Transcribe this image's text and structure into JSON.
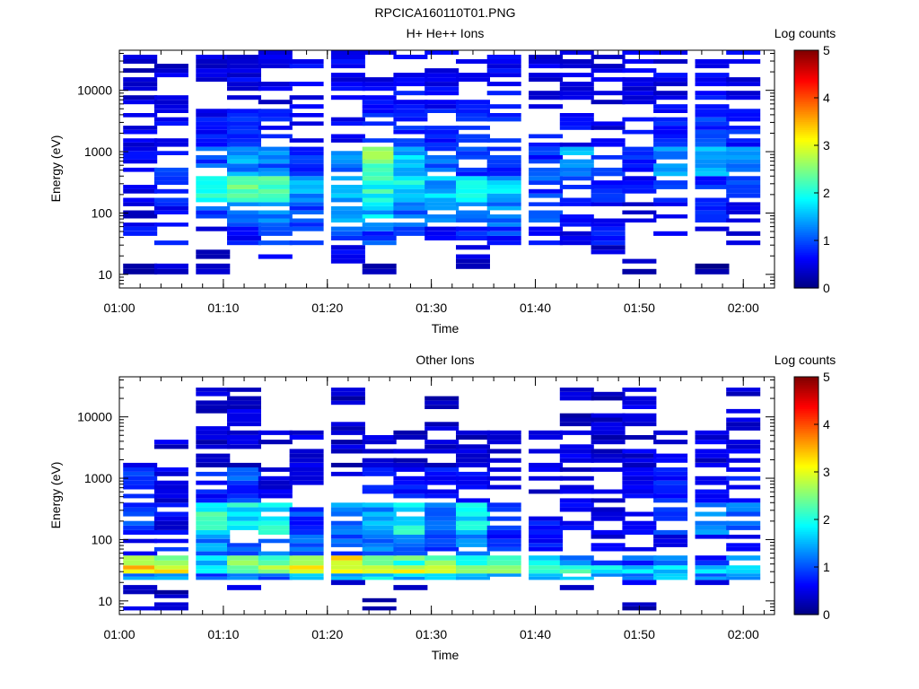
{
  "figure_title": "RPCICA160110T01.PNG",
  "colors": {
    "axis": "#000000",
    "background": "#ffffff"
  },
  "colorbar": {
    "label": "Log counts",
    "ticks": [
      "0",
      "1",
      "2",
      "3",
      "4",
      "5"
    ],
    "range": [
      0,
      5
    ],
    "colormap": "jet"
  },
  "chart_data": [
    {
      "type": "heatmap",
      "title": "H+ He++ Ions",
      "xlabel": "Time",
      "ylabel": "Energy (eV)",
      "y_scale": "log",
      "ylim": [
        6,
        45000
      ],
      "xlim": [
        "01:00",
        "02:03"
      ],
      "x_ticks": [
        "01:00",
        "01:10",
        "01:20",
        "01:30",
        "01:40",
        "01:50",
        "02:00"
      ],
      "y_ticks": [
        "10",
        "100",
        "1000",
        "10000"
      ],
      "time_bins": [
        "01:02",
        "01:05",
        "01:09",
        "01:12",
        "01:15",
        "01:18",
        "01:22",
        "01:25",
        "01:28",
        "01:31",
        "01:34",
        "01:37",
        "01:41",
        "01:44",
        "01:47",
        "01:50",
        "01:53",
        "01:57",
        "02:00"
      ],
      "energy_bands": [
        {
          "range_eV": [
            10,
            15
          ],
          "levels": [
            0.2,
            0.2,
            0.1,
            null,
            null,
            null,
            null,
            0.2,
            null,
            null,
            0.2,
            null,
            null,
            null,
            null,
            0.1,
            null,
            0.1,
            null
          ]
        },
        {
          "range_eV": [
            15,
            30
          ],
          "levels": [
            null,
            null,
            0.3,
            null,
            0.3,
            null,
            0.4,
            null,
            null,
            null,
            0.3,
            null,
            null,
            null,
            0.3,
            0.2,
            null,
            null,
            null
          ]
        },
        {
          "range_eV": [
            30,
            60
          ],
          "levels": [
            0.6,
            0.6,
            0.4,
            0.5,
            0.7,
            1.1,
            1.0,
            0.9,
            0.7,
            0.5,
            0.6,
            0.8,
            0.5,
            0.4,
            0.6,
            null,
            0.4,
            0.5,
            0.4
          ]
        },
        {
          "range_eV": [
            60,
            150
          ],
          "levels": [
            0.2,
            0.5,
            0.9,
            1.0,
            1.2,
            1.0,
            1.3,
            1.6,
            1.1,
            1.3,
            1.0,
            1.2,
            0.8,
            0.4,
            0.5,
            0.4,
            0.5,
            0.6,
            0.5
          ]
        },
        {
          "range_eV": [
            150,
            400
          ],
          "levels": [
            0.3,
            0.6,
            1.9,
            2.2,
            2.1,
            1.3,
            1.4,
            2.0,
            1.8,
            1.5,
            1.7,
            1.6,
            0.9,
            0.7,
            0.6,
            0.5,
            0.7,
            0.6,
            0.8
          ]
        },
        {
          "range_eV": [
            400,
            1200
          ],
          "levels": [
            0.4,
            0.7,
            0.9,
            1.3,
            1.1,
            0.9,
            1.2,
            2.4,
            1.6,
            1.0,
            0.8,
            0.7,
            0.8,
            1.5,
            0.7,
            0.6,
            1.2,
            1.6,
            1.3
          ]
        },
        {
          "range_eV": [
            1200,
            5000
          ],
          "levels": [
            0.3,
            0.5,
            0.5,
            0.6,
            0.5,
            0.5,
            0.5,
            0.6,
            0.7,
            0.6,
            0.7,
            0.7,
            0.5,
            0.5,
            0.4,
            0.5,
            0.6,
            0.8,
            0.6
          ]
        },
        {
          "range_eV": [
            5000,
            45000
          ],
          "levels": [
            0.2,
            0.3,
            0.3,
            0.4,
            0.3,
            0.4,
            0.4,
            0.4,
            0.5,
            0.4,
            0.5,
            0.5,
            0.3,
            0.4,
            0.3,
            0.4,
            0.4,
            0.5,
            0.4
          ]
        }
      ]
    },
    {
      "type": "heatmap",
      "title": "Other Ions",
      "xlabel": "Time",
      "ylabel": "Energy (eV)",
      "y_scale": "log",
      "ylim": [
        6,
        45000
      ],
      "xlim": [
        "01:00",
        "02:03"
      ],
      "x_ticks": [
        "01:00",
        "01:10",
        "01:20",
        "01:30",
        "01:40",
        "01:50",
        "02:00"
      ],
      "y_ticks": [
        "10",
        "100",
        "1000",
        "10000"
      ],
      "time_bins": [
        "01:02",
        "01:05",
        "01:09",
        "01:12",
        "01:15",
        "01:18",
        "01:22",
        "01:25",
        "01:28",
        "01:31",
        "01:34",
        "01:37",
        "01:41",
        "01:44",
        "01:47",
        "01:50",
        "01:53",
        "01:57",
        "02:00"
      ],
      "energy_bands": [
        {
          "range_eV": [
            7,
            15
          ],
          "levels": [
            0.2,
            0.1,
            null,
            null,
            null,
            null,
            null,
            0.2,
            null,
            null,
            null,
            null,
            null,
            null,
            null,
            0.1,
            0.1,
            null,
            null
          ]
        },
        {
          "range_eV": [
            15,
            22
          ],
          "levels": [
            0.4,
            null,
            null,
            0.3,
            null,
            null,
            0.3,
            0.4,
            0.3,
            null,
            null,
            null,
            null,
            0.2,
            null,
            0.3,
            null,
            0.3,
            null
          ]
        },
        {
          "range_eV": [
            22,
            28
          ],
          "levels": [
            1.3,
            1.6,
            1.0,
            1.4,
            1.1,
            1.5,
            1.6,
            1.7,
            1.6,
            1.5,
            1.4,
            1.4,
            1.5,
            1.4,
            1.3,
            1.3,
            1.4,
            1.2,
            1.3
          ]
        },
        {
          "range_eV": [
            28,
            38
          ],
          "levels": [
            3.3,
            3.0,
            2.0,
            2.4,
            2.6,
            3.1,
            2.9,
            2.7,
            2.9,
            3.0,
            2.8,
            2.6,
            2.3,
            2.0,
            1.8,
            1.6,
            1.7,
            1.6,
            1.7
          ]
        },
        {
          "range_eV": [
            38,
            55
          ],
          "levels": [
            2.8,
            2.6,
            1.6,
            2.4,
            2.4,
            2.8,
            3.2,
            2.1,
            2.2,
            2.4,
            2.1,
            1.9,
            1.6,
            1.3,
            1.1,
            0.9,
            1.0,
            0.8,
            1.1
          ]
        },
        {
          "range_eV": [
            55,
            120
          ],
          "levels": [
            0.5,
            0.6,
            1.2,
            1.1,
            1.1,
            0.9,
            0.9,
            1.2,
            1.1,
            0.7,
            1.4,
            0.8,
            0.5,
            null,
            0.4,
            0.3,
            0.4,
            0.4,
            0.5
          ]
        },
        {
          "range_eV": [
            120,
            400
          ],
          "levels": [
            0.8,
            0.4,
            2.0,
            1.8,
            1.9,
            0.8,
            1.2,
            1.3,
            1.9,
            1.0,
            1.8,
            0.7,
            0.5,
            0.4,
            0.3,
            0.5,
            0.7,
            1.3,
            1.2
          ]
        },
        {
          "range_eV": [
            400,
            1500
          ],
          "levels": [
            0.7,
            0.3,
            0.6,
            0.9,
            0.4,
            0.3,
            0.5,
            0.7,
            0.6,
            0.5,
            0.5,
            0.3,
            0.3,
            0.3,
            0.4,
            0.5,
            0.6,
            0.5,
            0.5
          ]
        },
        {
          "range_eV": [
            1500,
            6000
          ],
          "levels": [
            0.3,
            0.3,
            0.2,
            0.3,
            0.3,
            0.3,
            0.2,
            0.3,
            0.2,
            0.3,
            0.2,
            0.3,
            0.2,
            0.3,
            0.2,
            0.3,
            0.4,
            0.3,
            0.3
          ]
        },
        {
          "range_eV": [
            6000,
            30000
          ],
          "levels": [
            null,
            null,
            0.2,
            0.3,
            null,
            null,
            0.2,
            null,
            null,
            0.2,
            null,
            null,
            null,
            0.2,
            0.2,
            0.3,
            null,
            null,
            0.2
          ]
        }
      ]
    }
  ]
}
